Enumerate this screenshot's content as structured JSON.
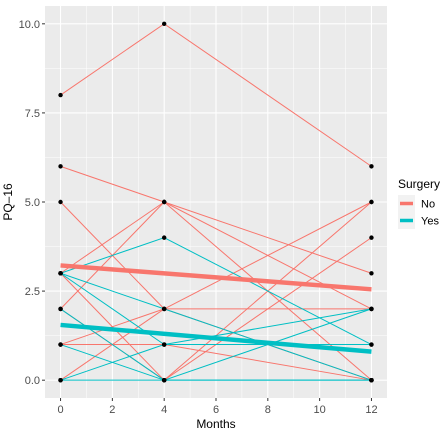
{
  "chart_data": {
    "type": "line",
    "xlabel": "Months",
    "ylabel": "PQ–16",
    "xlim": [
      -0.6,
      12.6
    ],
    "ylim": [
      -0.5,
      10.5
    ],
    "x_ticks": [
      0,
      2,
      4,
      6,
      8,
      10,
      12
    ],
    "x_tick_labels": [
      "0",
      "2",
      "4",
      "6",
      "8",
      "10",
      "12"
    ],
    "y_ticks": [
      0,
      2.5,
      5,
      7.5,
      10
    ],
    "y_tick_labels": [
      "0.0",
      "2.5",
      "5.0",
      "7.5",
      "10.0"
    ],
    "grid": true,
    "legend": {
      "title": "Surgery",
      "position": "right",
      "entries": [
        {
          "label": "No",
          "color": "#F8766D"
        },
        {
          "label": "Yes",
          "color": "#00BFC4"
        }
      ]
    },
    "colors": {
      "No": "#F8766D",
      "Yes": "#00BFC4",
      "panel": "#EBEBEB",
      "grid": "#FFFFFF"
    },
    "x": [
      0,
      4,
      12
    ],
    "subjects": [
      {
        "group": "No",
        "values": [
          8,
          10,
          6
        ]
      },
      {
        "group": "No",
        "values": [
          6,
          5,
          3
        ]
      },
      {
        "group": "No",
        "values": [
          5,
          2,
          0
        ]
      },
      {
        "group": "No",
        "values": [
          3,
          5,
          0
        ]
      },
      {
        "group": "No",
        "values": [
          3,
          0,
          5
        ]
      },
      {
        "group": "No",
        "values": [
          2,
          5,
          2
        ]
      },
      {
        "group": "No",
        "values": [
          2,
          0,
          4
        ]
      },
      {
        "group": "No",
        "values": [
          1,
          2,
          2
        ]
      },
      {
        "group": "No",
        "values": [
          0,
          2,
          5
        ]
      },
      {
        "group": "No",
        "values": [
          1,
          1,
          0
        ]
      },
      {
        "group": "Yes",
        "values": [
          3,
          4,
          1
        ]
      },
      {
        "group": "Yes",
        "values": [
          3,
          2,
          0
        ]
      },
      {
        "group": "Yes",
        "values": [
          2,
          0,
          2
        ]
      },
      {
        "group": "Yes",
        "values": [
          1,
          0,
          0
        ]
      },
      {
        "group": "Yes",
        "values": [
          0,
          1,
          2
        ]
      },
      {
        "group": "Yes",
        "values": [
          0,
          0,
          0
        ]
      },
      {
        "group": "Yes",
        "values": [
          3,
          1,
          1
        ]
      }
    ],
    "trend_lines": [
      {
        "group": "No",
        "x": [
          0,
          12
        ],
        "values": [
          3.22,
          2.55
        ]
      },
      {
        "group": "Yes",
        "x": [
          0,
          12
        ],
        "values": [
          1.55,
          0.8
        ]
      }
    ]
  }
}
